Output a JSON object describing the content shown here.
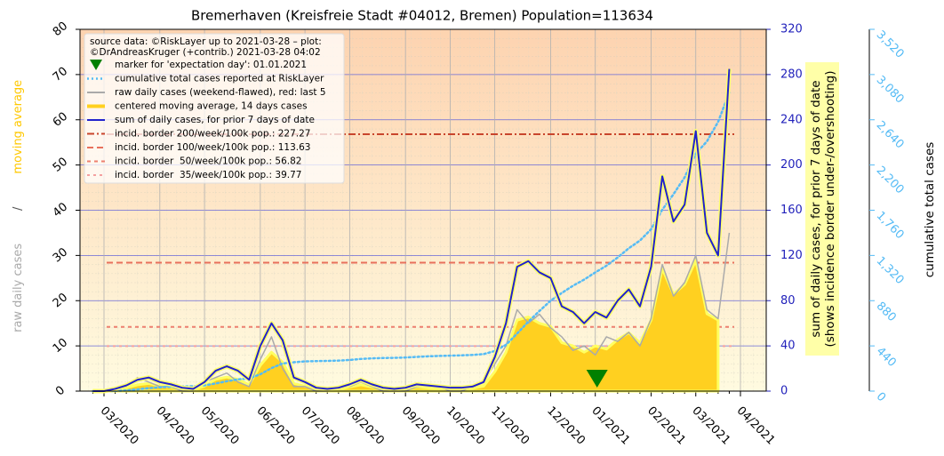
{
  "chart_data": {
    "type": "line",
    "title": "Bremerhaven (Kreisfreie Stadt #04012, Bremen) Population=113634",
    "source": [
      "source data: ©RiskLayer up to 2021-03-28 – plot:",
      "©DrAndreasKruger (+contrib.) 2021-03-28 04:02"
    ],
    "ylabel": [
      "raw daily cases",
      "/",
      "moving average"
    ],
    "y2label": [
      "sum of daily cases, for prior 7 days of date",
      "(shows incidence border under-/overshooting)"
    ],
    "y3label": "cumulative total cases",
    "categories": [
      null,
      "03/2020",
      null,
      null,
      null,
      null,
      "04/2020",
      null,
      null,
      null,
      "05/2020",
      null,
      null,
      null,
      null,
      "06/2020",
      null,
      null,
      null,
      "07/2020",
      null,
      null,
      null,
      "08/2020",
      null,
      null,
      null,
      null,
      "09/2020",
      null,
      null,
      null,
      "10/2020",
      null,
      null,
      null,
      "11/2020",
      null,
      null,
      null,
      null,
      "12/2020",
      null,
      null,
      null,
      "01/2021",
      null,
      null,
      null,
      null,
      "02/2021",
      null,
      null,
      null,
      "03/2021",
      null,
      null,
      null,
      "04/2021"
    ],
    "ylim": [
      0,
      80
    ],
    "yticks": [
      0,
      10,
      20,
      30,
      40,
      50,
      60,
      70,
      80
    ],
    "y2lim": [
      0,
      320
    ],
    "y2ticks": [
      0,
      40,
      80,
      120,
      160,
      200,
      240,
      280,
      320
    ],
    "y3lim": [
      0,
      3520
    ],
    "y3ticks": [
      {
        "value": 0,
        "label": "0"
      },
      {
        "value": 440,
        "label": "440"
      },
      {
        "value": 880,
        "label": "880"
      },
      {
        "value": 1320,
        "label": "1,320"
      },
      {
        "value": 1760,
        "label": "1,760"
      },
      {
        "value": 2200,
        "label": "2,200"
      },
      {
        "value": 2640,
        "label": "2,640"
      },
      {
        "value": 3080,
        "label": "3,080"
      },
      {
        "value": 3520,
        "label": "3,520"
      }
    ],
    "grid": true,
    "marker": {
      "name": "marker for 'expectation day': 01.01.2021",
      "color": "#008000",
      "category": "01/2021"
    },
    "series": [
      {
        "name": "cumulative total cases reported at RiskLayer",
        "color": "#55bbf5",
        "axis": "y3",
        "style": "dotted",
        "values": [
          0,
          0,
          2,
          7,
          17,
          29,
          37,
          43,
          46,
          48,
          56,
          74,
          96,
          114,
          124,
          164,
          224,
          269,
          281,
          289,
          292,
          294,
          297,
          303,
          313,
          319,
          322,
          324,
          327,
          333,
          338,
          342,
          345,
          348,
          352,
          360,
          390,
          450,
          560,
          675,
          780,
          880,
          955,
          1025,
          1085,
          1155,
          1220,
          1300,
          1390,
          1465,
          1575,
          1765,
          1915,
          2080,
          2310,
          2430,
          2620,
          2905,
          null
        ]
      },
      {
        "name": "raw daily cases (weekend-flawed), red: last 5",
        "color": "#aaaaaa",
        "axis": "y",
        "style": "line",
        "values": [
          0,
          0,
          0,
          1,
          3,
          2,
          1,
          1,
          0,
          0,
          2,
          3,
          4,
          2,
          1,
          7,
          12,
          5,
          1,
          1,
          0,
          0,
          1,
          1,
          2,
          1,
          0,
          0,
          0,
          1,
          1,
          1,
          0,
          0,
          1,
          2,
          6,
          10,
          18,
          15,
          17,
          14,
          12,
          9,
          10,
          8,
          12,
          11,
          13,
          10,
          16,
          28,
          21,
          24,
          30,
          18,
          16,
          35,
          null
        ]
      },
      {
        "name": "centered moving average, 14 days cases",
        "color": "#ffd020",
        "axis": "y",
        "style": "area",
        "values": [
          0,
          0,
          0.3,
          0.7,
          1.4,
          1.7,
          1.1,
          0.9,
          0.4,
          0.3,
          1.1,
          2.6,
          3.1,
          2.6,
          1.4,
          5.7,
          8.6,
          6.4,
          1.7,
          1.1,
          0.4,
          0.3,
          0.4,
          0.9,
          1.4,
          0.9,
          0.4,
          0.3,
          0.4,
          0.9,
          0.7,
          0.6,
          0.4,
          0.4,
          0.6,
          1.1,
          4.3,
          8.6,
          15.7,
          16.4,
          15,
          14.3,
          10.7,
          10,
          8.6,
          10,
          9.3,
          11.4,
          12.9,
          10.7,
          15.7,
          27.1,
          21.4,
          23.6,
          28.9,
          17.1,
          15.7,
          null,
          null
        ]
      },
      {
        "name": "sum of daily cases, for prior 7 days of date",
        "color": "#2222cc",
        "axis": "y2",
        "style": "line",
        "values": [
          0,
          0,
          2,
          5,
          10,
          12,
          8,
          6,
          3,
          2,
          8,
          18,
          22,
          18,
          10,
          40,
          60,
          45,
          12,
          8,
          3,
          2,
          3,
          6,
          10,
          6,
          3,
          2,
          3,
          6,
          5,
          4,
          3,
          3,
          4,
          8,
          30,
          60,
          110,
          115,
          105,
          100,
          75,
          70,
          60,
          70,
          65,
          80,
          90,
          75,
          110,
          190,
          150,
          165,
          230,
          140,
          120,
          285,
          null
        ]
      }
    ],
    "borders": [
      {
        "name": "incid. border 200/week/100k pop.: 227.27",
        "value": 227.27,
        "color": "#c8452c",
        "dash": "8 3 2 3"
      },
      {
        "name": "incid. border 100/week/100k pop.: 113.63",
        "value": 113.63,
        "color": "#e8705c",
        "dash": "7 4"
      },
      {
        "name": "incid. border  50/week/100k pop.: 56.82",
        "value": 56.82,
        "color": "#ee8070",
        "dash": "4 4"
      },
      {
        "name": "incid. border  35/week/100k pop.: 39.77",
        "value": 39.77,
        "color": "#f4a0a0",
        "dash": "3 4"
      }
    ]
  }
}
